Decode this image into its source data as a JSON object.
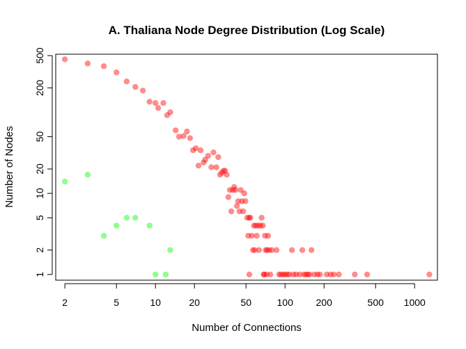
{
  "chart_data": {
    "type": "scatter",
    "title": "A. Thaliana Node Degree Distribution (Log Scale)",
    "xlabel": "Number of Connections",
    "ylabel": "Number of Nodes",
    "xscale": "log",
    "yscale": "log",
    "xlim": [
      1.7,
      1500
    ],
    "ylim": [
      0.85,
      520
    ],
    "xticks": [
      2,
      5,
      10,
      20,
      50,
      100,
      200,
      500,
      1000
    ],
    "yticks": [
      1,
      2,
      5,
      10,
      20,
      50,
      200,
      500
    ],
    "grid": false,
    "legend": "none",
    "colors": {
      "red": "#ff0000",
      "green": "#00ff00"
    },
    "series": [
      {
        "color": "#ff0000",
        "points": [
          [
            2,
            450
          ],
          [
            3,
            400
          ],
          [
            4,
            370
          ],
          [
            5,
            310
          ],
          [
            6,
            240
          ],
          [
            7,
            205
          ],
          [
            8,
            185
          ],
          [
            9,
            135
          ],
          [
            10,
            130
          ],
          [
            10.5,
            113
          ],
          [
            11.5,
            130
          ],
          [
            12.3,
            92
          ],
          [
            13,
            100
          ],
          [
            14.3,
            60
          ],
          [
            15.2,
            50
          ],
          [
            16.5,
            51
          ],
          [
            17.5,
            58
          ],
          [
            18.5,
            48
          ],
          [
            19.5,
            34
          ],
          [
            20.5,
            36
          ],
          [
            21.5,
            22
          ],
          [
            22.3,
            34
          ],
          [
            23.5,
            24
          ],
          [
            24.2,
            26
          ],
          [
            25.5,
            29
          ],
          [
            27,
            21
          ],
          [
            28,
            32
          ],
          [
            29.5,
            21
          ],
          [
            30.5,
            28
          ],
          [
            31.5,
            17
          ],
          [
            32.5,
            18
          ],
          [
            33.5,
            19
          ],
          [
            34.5,
            19
          ],
          [
            35.5,
            17
          ],
          [
            36.5,
            9
          ],
          [
            37.5,
            11
          ],
          [
            38.5,
            6
          ],
          [
            39.5,
            11
          ],
          [
            40.5,
            12
          ],
          [
            41.5,
            11
          ],
          [
            42.5,
            7
          ],
          [
            43.5,
            8
          ],
          [
            44.5,
            6
          ],
          [
            45.5,
            11
          ],
          [
            46.5,
            8
          ],
          [
            47.5,
            6
          ],
          [
            48.5,
            10
          ],
          [
            49.5,
            8
          ],
          [
            51,
            5
          ],
          [
            52,
            3
          ],
          [
            53,
            5
          ],
          [
            54,
            5
          ],
          [
            55.5,
            3
          ],
          [
            56.5,
            2
          ],
          [
            57.5,
            4
          ],
          [
            58.5,
            2
          ],
          [
            59.5,
            4
          ],
          [
            60.5,
            3
          ],
          [
            62,
            4
          ],
          [
            63,
            2
          ],
          [
            64.5,
            4
          ],
          [
            66,
            5
          ],
          [
            67.5,
            4
          ],
          [
            68.5,
            1
          ],
          [
            70,
            3
          ],
          [
            71,
            2
          ],
          [
            72.5,
            2
          ],
          [
            74,
            3
          ],
          [
            75.5,
            2
          ],
          [
            77,
            1
          ],
          [
            79,
            2
          ],
          [
            53,
            1
          ],
          [
            69,
            1
          ],
          [
            72,
            1
          ],
          [
            86,
            2
          ],
          [
            90,
            1
          ],
          [
            93,
            1
          ],
          [
            97,
            1
          ],
          [
            100,
            1
          ],
          [
            104,
            1
          ],
          [
            108,
            1
          ],
          [
            113,
            2
          ],
          [
            116,
            1
          ],
          [
            122,
            1
          ],
          [
            130,
            1
          ],
          [
            136,
            2
          ],
          [
            140,
            1
          ],
          [
            145,
            1
          ],
          [
            150,
            1
          ],
          [
            155,
            1
          ],
          [
            160,
            2
          ],
          [
            168,
            1
          ],
          [
            178,
            1
          ],
          [
            186,
            1
          ],
          [
            210,
            1
          ],
          [
            225,
            1
          ],
          [
            238,
            1
          ],
          [
            260,
            1
          ],
          [
            345,
            1
          ],
          [
            430,
            1
          ],
          [
            1300,
            1
          ]
        ]
      },
      {
        "color": "#00ff00",
        "points": [
          [
            2,
            14
          ],
          [
            3,
            17
          ],
          [
            4,
            3
          ],
          [
            5,
            4
          ],
          [
            6,
            5
          ],
          [
            7,
            5
          ],
          [
            9,
            4
          ],
          [
            10,
            1
          ],
          [
            12,
            1
          ],
          [
            13,
            2
          ]
        ]
      }
    ]
  }
}
